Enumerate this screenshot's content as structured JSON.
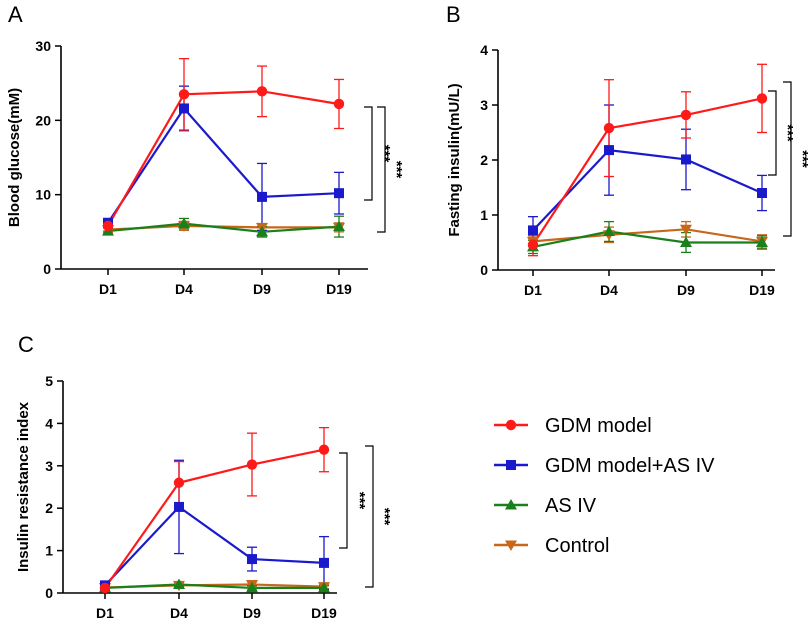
{
  "figure": {
    "legend": [
      {
        "name": "GDM model",
        "color": "#ff1a1a",
        "marker": "circle"
      },
      {
        "name": "GDM model+AS IV",
        "color": "#1a1acc",
        "marker": "square"
      },
      {
        "name": "AS IV",
        "color": "#1a801a",
        "marker": "triangle-up"
      },
      {
        "name": "Control",
        "color": "#c8661a",
        "marker": "triangle-down"
      }
    ]
  },
  "chart_data": [
    {
      "panel": "A",
      "type": "line",
      "title": "",
      "xlabel": "",
      "ylabel": "Blood glucose(mM)",
      "categories": [
        "D1",
        "D4",
        "D9",
        "D19"
      ],
      "ylim": [
        0,
        30
      ],
      "yticks": [
        0,
        10,
        20,
        30
      ],
      "series": [
        {
          "name": "GDM model",
          "values": [
            5.8,
            23.5,
            23.9,
            22.2
          ],
          "errors": [
            0.7,
            4.8,
            3.4,
            3.3
          ]
        },
        {
          "name": "GDM model+AS IV",
          "values": [
            6.2,
            21.6,
            9.7,
            10.2
          ],
          "errors": [
            0.6,
            3.0,
            4.5,
            2.8
          ]
        },
        {
          "name": "AS IV",
          "values": [
            5.1,
            6.1,
            5.0,
            5.7
          ],
          "errors": [
            0.4,
            0.7,
            0.7,
            1.4
          ]
        },
        {
          "name": "Control",
          "values": [
            5.3,
            5.8,
            5.6,
            5.6
          ],
          "errors": [
            0.4,
            0.6,
            0.5,
            0.6
          ]
        }
      ],
      "annotations": [
        "***",
        "***"
      ]
    },
    {
      "panel": "B",
      "type": "line",
      "title": "",
      "xlabel": "",
      "ylabel": "Fasting insulin(mU/L)",
      "categories": [
        "D1",
        "D4",
        "D9",
        "D19"
      ],
      "ylim": [
        0,
        4
      ],
      "yticks": [
        0,
        1,
        2,
        3,
        4
      ],
      "series": [
        {
          "name": "GDM model",
          "values": [
            0.46,
            2.58,
            2.82,
            3.12
          ],
          "errors": [
            0.2,
            0.88,
            0.42,
            0.62
          ]
        },
        {
          "name": "GDM model+AS IV",
          "values": [
            0.72,
            2.18,
            2.01,
            1.4
          ],
          "errors": [
            0.25,
            0.82,
            0.55,
            0.32
          ]
        },
        {
          "name": "AS IV",
          "values": [
            0.42,
            0.7,
            0.5,
            0.5
          ],
          "errors": [
            0.12,
            0.18,
            0.18,
            0.12
          ]
        },
        {
          "name": "Control",
          "values": [
            0.52,
            0.64,
            0.74,
            0.52
          ],
          "errors": [
            0.1,
            0.14,
            0.14,
            0.12
          ]
        }
      ],
      "annotations": [
        "***",
        "***"
      ]
    },
    {
      "panel": "C",
      "type": "line",
      "title": "",
      "xlabel": "",
      "ylabel": "Insulin resistance index",
      "categories": [
        "D1",
        "D4",
        "D9",
        "D19"
      ],
      "ylim": [
        0,
        5
      ],
      "yticks": [
        0,
        1,
        2,
        3,
        4,
        5
      ],
      "series": [
        {
          "name": "GDM model",
          "values": [
            0.12,
            2.6,
            3.03,
            3.38
          ],
          "errors": [
            0.05,
            0.5,
            0.74,
            0.52
          ]
        },
        {
          "name": "GDM model+AS IV",
          "values": [
            0.18,
            2.03,
            0.8,
            0.71
          ],
          "errors": [
            0.06,
            1.1,
            0.28,
            0.62
          ]
        },
        {
          "name": "AS IV",
          "values": [
            0.12,
            0.2,
            0.12,
            0.12
          ],
          "errors": [
            0.04,
            0.05,
            0.05,
            0.05
          ]
        },
        {
          "name": "Control",
          "values": [
            0.13,
            0.18,
            0.2,
            0.15
          ],
          "errors": [
            0.04,
            0.05,
            0.06,
            0.05
          ]
        }
      ],
      "annotations": [
        "***",
        "***"
      ]
    }
  ]
}
